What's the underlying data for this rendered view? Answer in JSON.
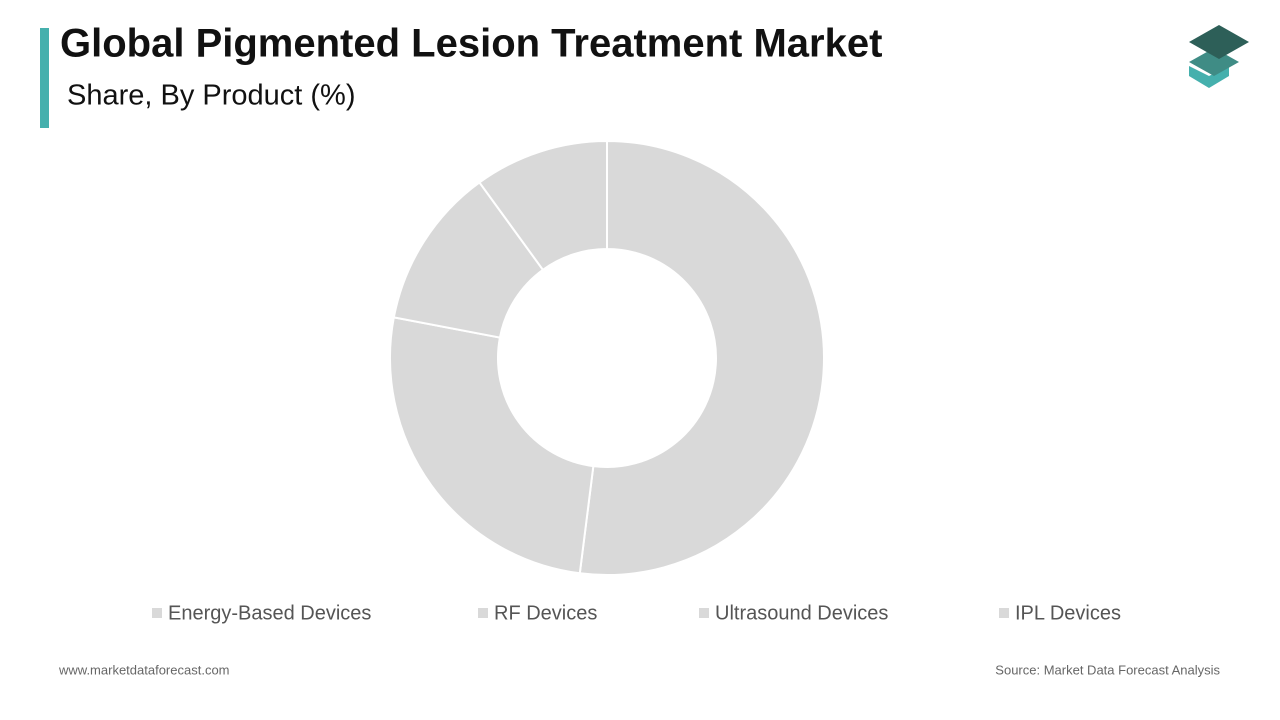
{
  "chart_data": {
    "type": "donut",
    "title": "Global Pigmented Lesion Treatment Market",
    "subtitle": "Share, By Product (%)",
    "categories": [
      "Energy-Based Devices",
      "RF Devices",
      "Ultrasound Devices",
      "IPL Devices"
    ],
    "values": [
      52,
      26,
      12,
      10
    ],
    "colors": [
      "#d9d9d9",
      "#d9d9d9",
      "#d9d9d9",
      "#d9d9d9"
    ],
    "legend": "bottom",
    "footer_left": "www.marketdataforecast.com",
    "footer_right": "Source: Market Data Forecast Analysis"
  }
}
